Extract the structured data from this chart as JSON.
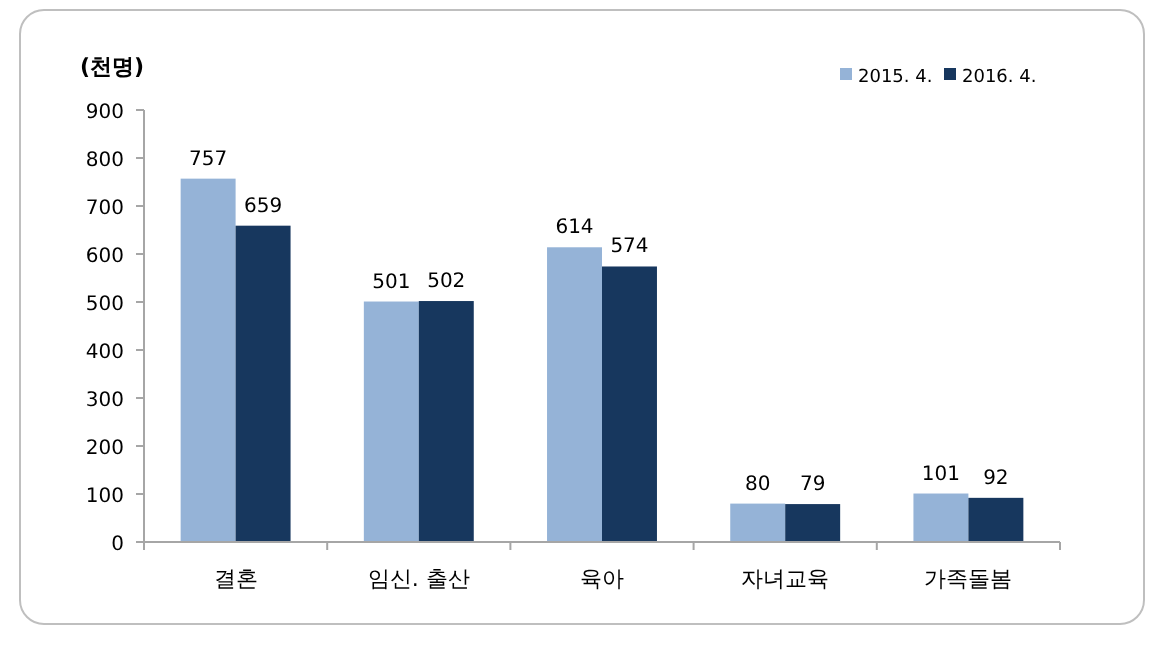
{
  "chart_data": {
    "type": "bar",
    "ylabel": "(천명)",
    "categories": [
      "결혼",
      "임신. 출산",
      "육아",
      "자녀교육",
      "가족돌봄"
    ],
    "series": [
      {
        "name": "2015. 4.",
        "color": "#95b3d7",
        "values": [
          757,
          501,
          614,
          80,
          101
        ]
      },
      {
        "name": "2016. 4.",
        "color": "#17375e",
        "values": [
          659,
          502,
          574,
          79,
          92
        ]
      }
    ],
    "ylim": [
      0,
      900
    ],
    "yticks": [
      0,
      100,
      200,
      300,
      400,
      500,
      600,
      700,
      800,
      900
    ],
    "data_labels": true,
    "legend": "top right",
    "grid": false
  }
}
